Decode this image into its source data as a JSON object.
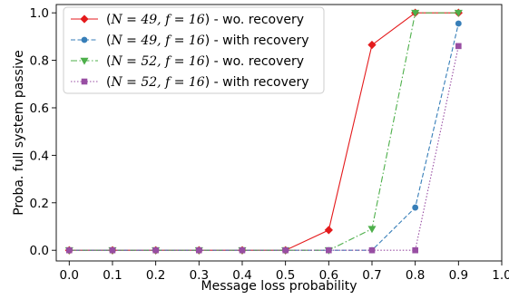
{
  "chart_data": {
    "type": "line",
    "xlabel": "Message loss probability",
    "ylabel": "Proba. full system passive",
    "xlim": [
      -0.03,
      1.0
    ],
    "ylim": [
      -0.045,
      1.035
    ],
    "xticks": [
      "0.0",
      "0.1",
      "0.2",
      "0.3",
      "0.4",
      "0.5",
      "0.6",
      "0.7",
      "0.8",
      "0.9",
      "1.0"
    ],
    "yticks": [
      "0.0",
      "0.2",
      "0.4",
      "0.6",
      "0.8",
      "1.0"
    ],
    "grid": false,
    "legend_position": "top-left",
    "x": [
      0.0,
      0.1,
      0.2,
      0.3,
      0.4,
      0.5,
      0.6,
      0.7,
      0.8,
      0.9
    ],
    "series": [
      {
        "name_prefix": "(",
        "name_math": "N = 49, f = 16",
        "name_suffix": ") - wo. recovery",
        "color": "#e41a1c",
        "dash": "solid",
        "marker": "diamond",
        "values": [
          0.0,
          0.0,
          0.0,
          0.0,
          0.0,
          0.0,
          0.085,
          0.865,
          1.0,
          1.0
        ]
      },
      {
        "name_prefix": "(",
        "name_math": "N = 49, f = 16",
        "name_suffix": ") - with recovery",
        "color": "#377eb8",
        "dash": "dashed",
        "marker": "circle",
        "values": [
          0.0,
          0.0,
          0.0,
          0.0,
          0.0,
          0.0,
          0.0,
          0.0,
          0.18,
          0.955
        ]
      },
      {
        "name_prefix": "(",
        "name_math": "N = 52, f = 16",
        "name_suffix": ") - wo. recovery",
        "color": "#4daf4a",
        "dash": "dashdot",
        "marker": "triangle-down",
        "values": [
          0.0,
          0.0,
          0.0,
          0.0,
          0.0,
          0.0,
          0.0,
          0.09,
          1.0,
          1.0
        ]
      },
      {
        "name_prefix": "(",
        "name_math": "N = 52, f = 16",
        "name_suffix": ") - with recovery",
        "color": "#984ea3",
        "dash": "dotted",
        "marker": "square",
        "values": [
          0.0,
          0.0,
          0.0,
          0.0,
          0.0,
          0.0,
          0.0,
          0.0,
          0.0,
          0.86
        ]
      }
    ]
  }
}
